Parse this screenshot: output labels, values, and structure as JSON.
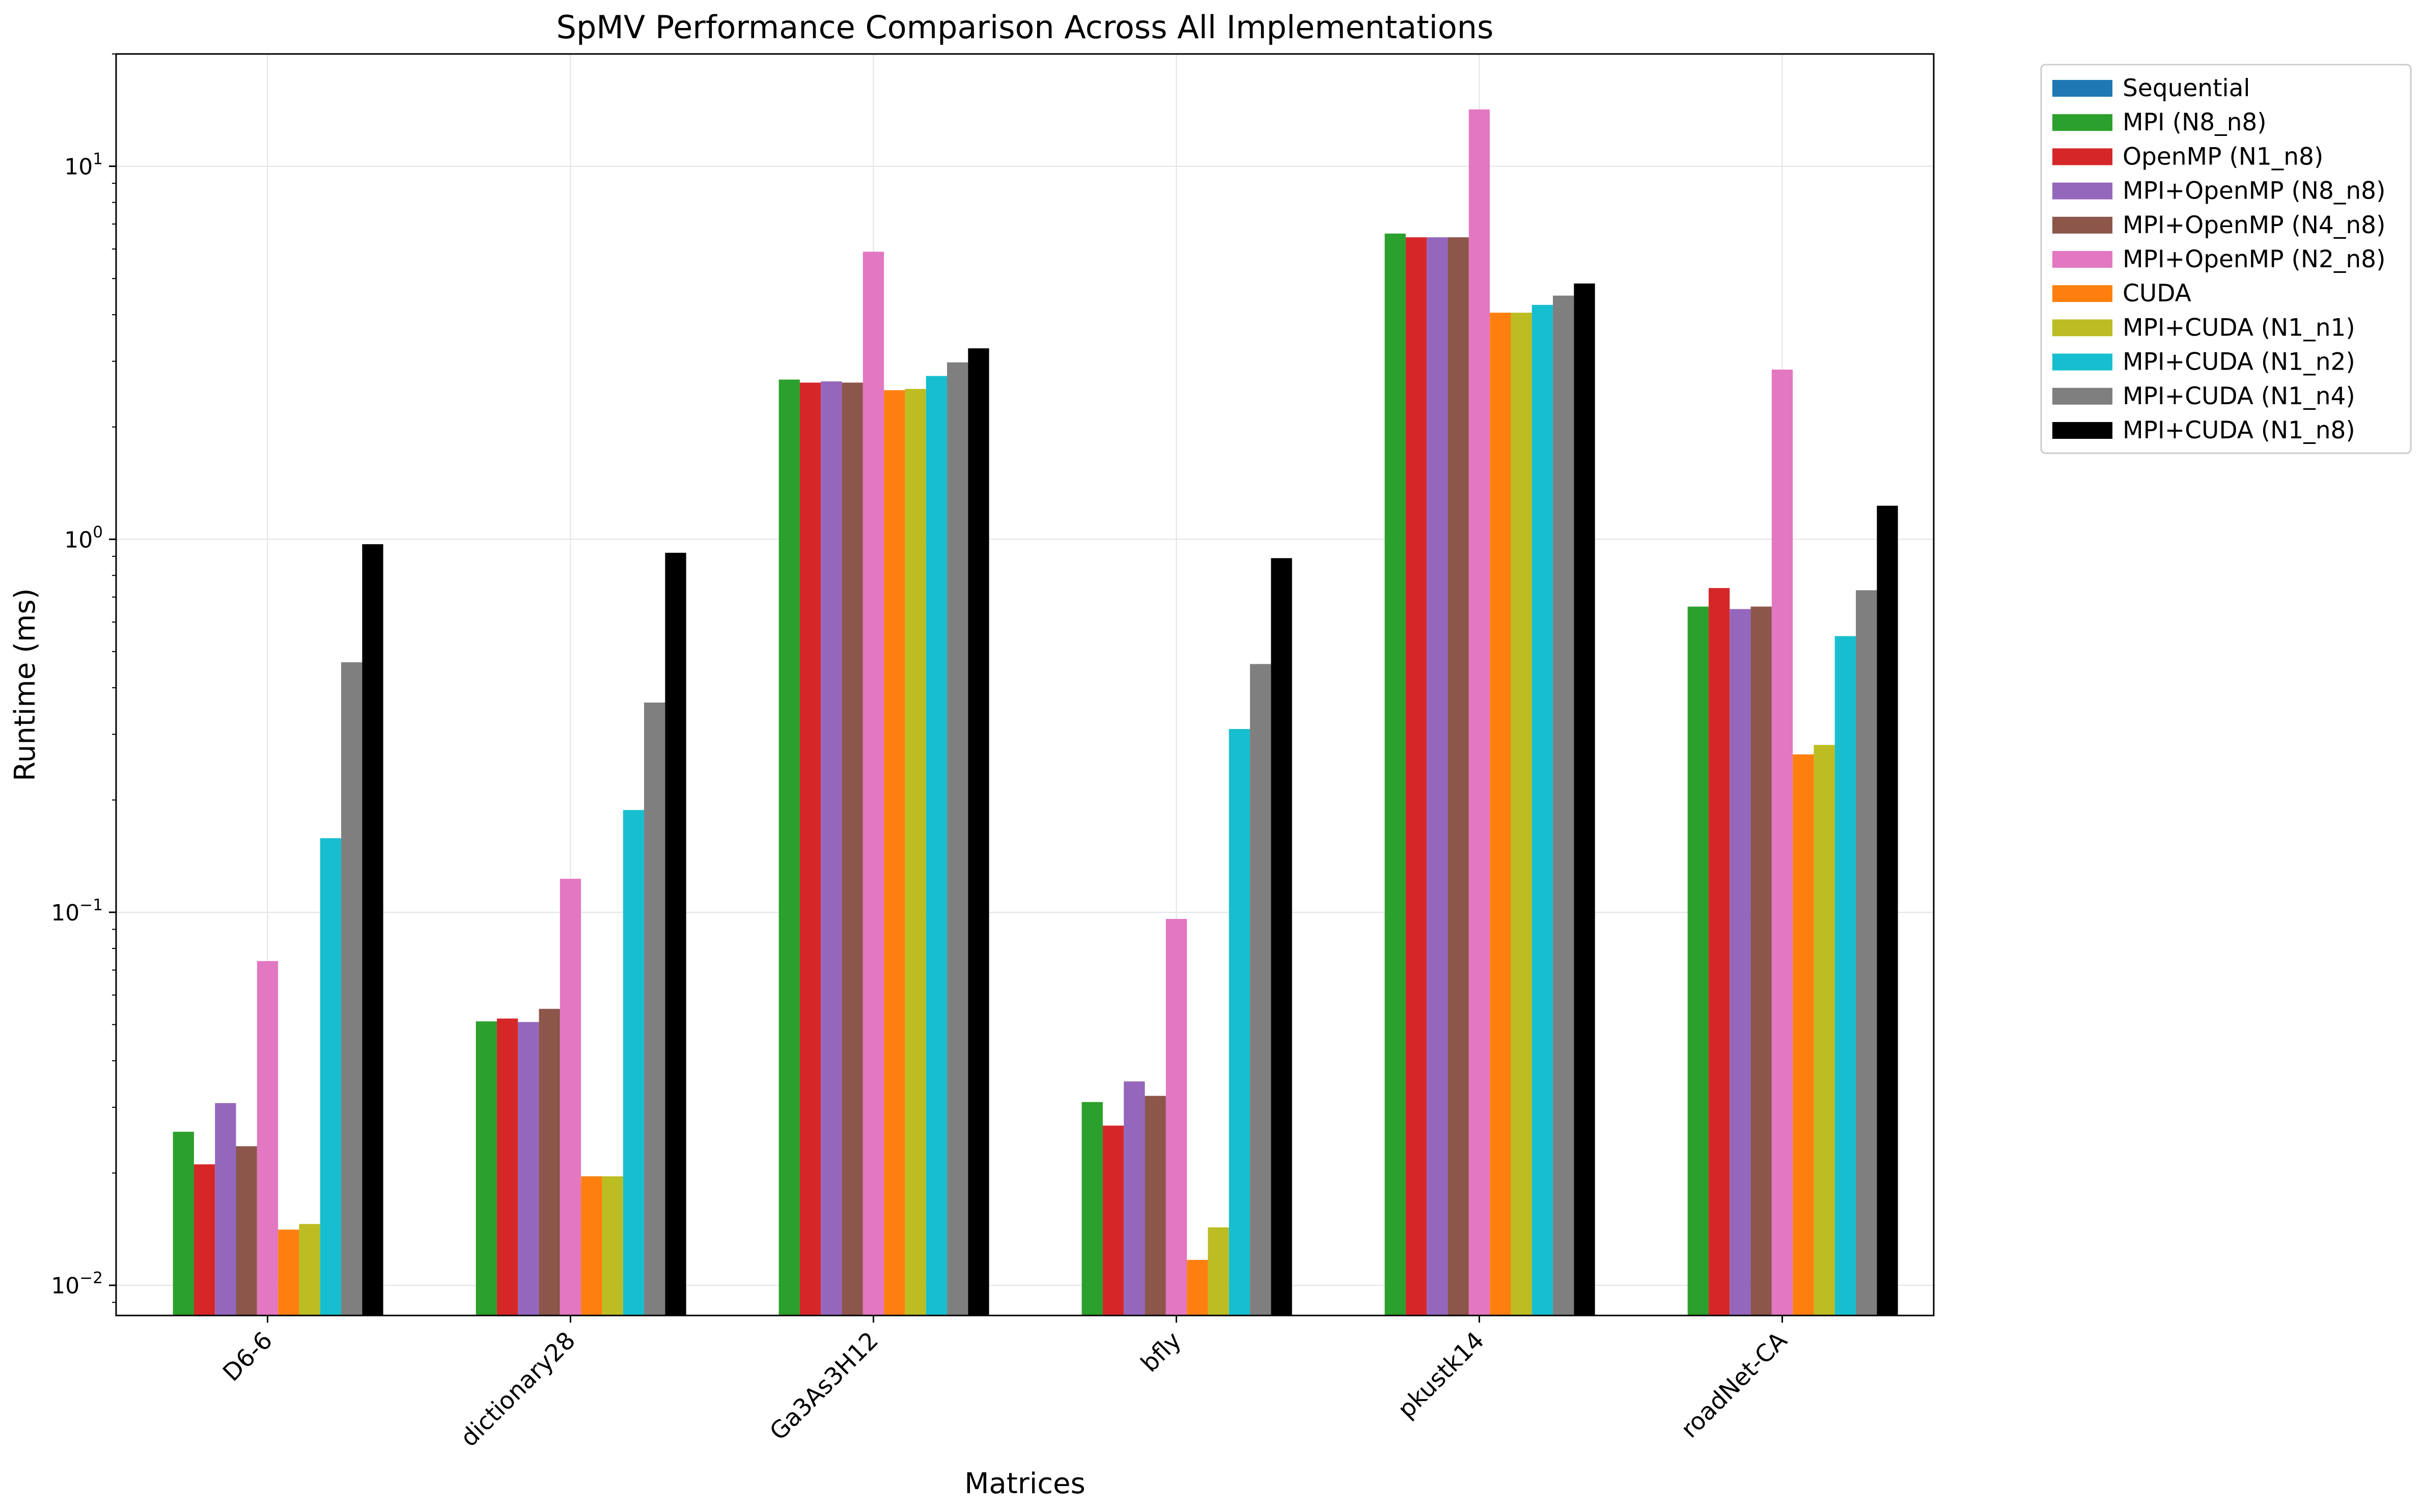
{
  "chart_data": {
    "type": "bar",
    "title": "SpMV Performance Comparison Across All Implementations",
    "xlabel": "Matrices",
    "ylabel": "Runtime (ms)",
    "yscale": "log",
    "ylim": [
      0.0083,
      20
    ],
    "y_ticks": [
      {
        "value": 0.01,
        "base": "10",
        "exp": "−2"
      },
      {
        "value": 0.1,
        "base": "10",
        "exp": "−1"
      },
      {
        "value": 1,
        "base": "10",
        "exp": "0"
      },
      {
        "value": 10,
        "base": "10",
        "exp": "1"
      }
    ],
    "grid": true,
    "legend_position": "outside upper right",
    "categories": [
      "D6-6",
      "dictionary28",
      "Ga3As3H12",
      "bfly",
      "pkustk14",
      "roadNet-CA"
    ],
    "series": [
      {
        "name": "Sequential",
        "color": "#1f77b4",
        "values": [
          null,
          null,
          null,
          null,
          null,
          null
        ]
      },
      {
        "name": "MPI (N8_n8)",
        "color": "#2ca02c",
        "values": [
          0.0258,
          0.051,
          2.68,
          0.031,
          6.6,
          0.66
        ]
      },
      {
        "name": "OpenMP (N1_n8)",
        "color": "#d62728",
        "values": [
          0.0211,
          0.0519,
          2.63,
          0.0268,
          6.45,
          0.74
        ]
      },
      {
        "name": "MPI+OpenMP (N8_n8)",
        "color": "#9467bd",
        "values": [
          0.0308,
          0.0508,
          2.65,
          0.0352,
          6.45,
          0.65
        ]
      },
      {
        "name": "MPI+OpenMP (N4_n8)",
        "color": "#8c564b",
        "values": [
          0.0236,
          0.0551,
          2.63,
          0.0322,
          6.45,
          0.66
        ]
      },
      {
        "name": "MPI+OpenMP (N2_n8)",
        "color": "#e377c2",
        "values": [
          0.074,
          0.123,
          5.9,
          0.096,
          14.2,
          2.85
        ]
      },
      {
        "name": "CUDA",
        "color": "#ff7f0e",
        "values": [
          0.0141,
          0.0196,
          2.51,
          0.0117,
          4.05,
          0.265
        ]
      },
      {
        "name": "MPI+CUDA (N1_n1)",
        "color": "#bcbd22",
        "values": [
          0.0146,
          0.0196,
          2.53,
          0.0143,
          4.05,
          0.281
        ]
      },
      {
        "name": "MPI+CUDA (N1_n2)",
        "color": "#17becf",
        "values": [
          0.158,
          0.188,
          2.74,
          0.31,
          4.25,
          0.55
        ]
      },
      {
        "name": "MPI+CUDA (N1_n4)",
        "color": "#7f7f7f",
        "values": [
          0.468,
          0.365,
          2.98,
          0.463,
          4.5,
          0.73
        ]
      },
      {
        "name": "MPI+CUDA (N1_n8)",
        "color": "#000000",
        "values": [
          0.97,
          0.92,
          3.25,
          0.89,
          4.85,
          1.23
        ]
      }
    ]
  }
}
